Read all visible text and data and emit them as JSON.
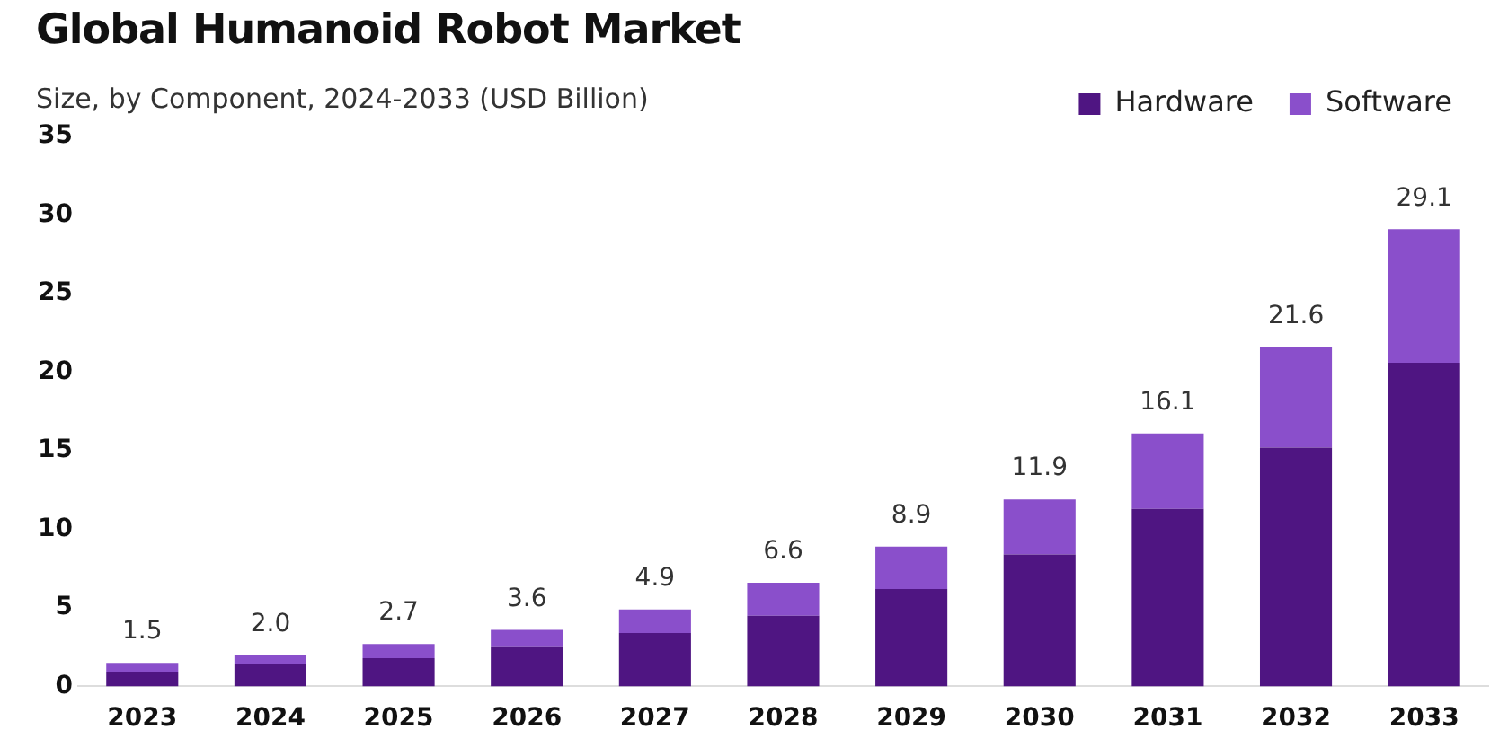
{
  "chart_data": {
    "type": "bar",
    "title": "Global Humanoid Robot Market",
    "subtitle": "Size, by Component, 2024-2033 (USD Billion)",
    "categories": [
      "2023",
      "2024",
      "2025",
      "2026",
      "2027",
      "2028",
      "2029",
      "2030",
      "2031",
      "2032",
      "2033"
    ],
    "series": [
      {
        "name": "Hardware",
        "color": "#4f1582",
        "values": [
          0.9,
          1.4,
          1.8,
          2.5,
          3.4,
          4.5,
          6.2,
          8.4,
          11.3,
          15.2,
          20.6
        ]
      },
      {
        "name": "Software",
        "color": "#8a4fcb",
        "values": [
          0.6,
          0.6,
          0.9,
          1.1,
          1.5,
          2.1,
          2.7,
          3.5,
          4.8,
          6.4,
          8.5
        ]
      }
    ],
    "stacked": true,
    "totals": [
      "1.5",
      "2.0",
      "2.7",
      "3.6",
      "4.9",
      "6.6",
      "8.9",
      "11.9",
      "16.1",
      "21.6",
      "29.1"
    ],
    "ylim": [
      0,
      35
    ],
    "yticks": [
      0,
      5,
      10,
      15,
      20,
      25,
      30,
      35
    ],
    "grid": false,
    "legend": "top right"
  }
}
